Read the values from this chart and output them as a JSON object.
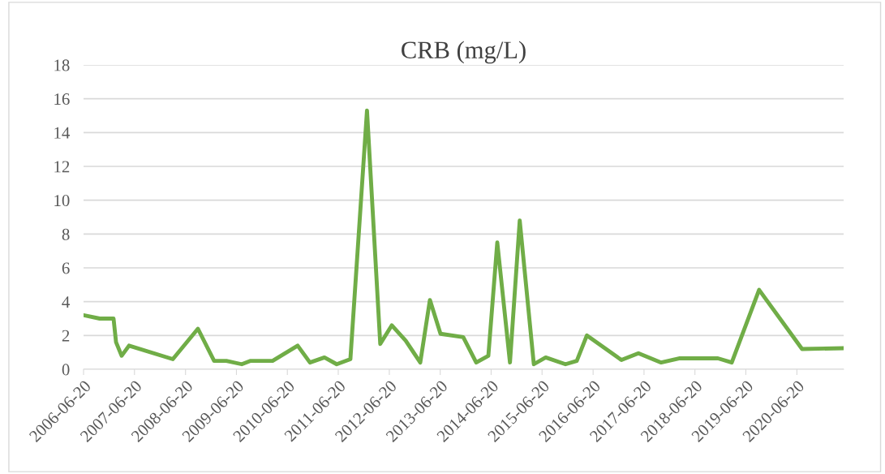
{
  "chart_data": {
    "type": "line",
    "title": "CRB (mg/L)",
    "x": [
      "2006-06-20",
      "2006-10-14",
      "2007-01-21",
      "2007-02-08",
      "2007-03-20",
      "2007-05-12",
      "2008-03-21",
      "2008-09-17",
      "2009-01-11",
      "2009-04-09",
      "2009-07-28",
      "2009-09-30",
      "2010-03-06",
      "2010-09-02",
      "2010-11-29",
      "2011-03-13",
      "2011-06-09",
      "2011-09-15",
      "2012-01-12",
      "2012-04-16",
      "2012-07-08",
      "2012-10-15",
      "2013-01-28",
      "2013-04-07",
      "2013-06-22",
      "2013-12-02",
      "2014-03-05",
      "2014-05-31",
      "2014-08-03",
      "2014-11-02",
      "2015-01-11",
      "2015-04-22",
      "2015-07-16",
      "2015-12-05",
      "2016-02-24",
      "2016-05-06",
      "2017-01-09",
      "2017-05-11",
      "2017-10-21",
      "2018-03-04",
      "2018-12-02",
      "2019-03-11",
      "2019-09-23",
      "2020-07-27",
      "2021-05-21"
    ],
    "series": [
      {
        "color": "#70ad47",
        "values": [
          3.2,
          3.0,
          3.0,
          1.6,
          0.8,
          1.4,
          0.6,
          2.4,
          0.5,
          0.5,
          0.3,
          0.5,
          0.5,
          1.4,
          0.4,
          0.7,
          0.3,
          0.6,
          15.3,
          1.5,
          2.6,
          1.7,
          0.4,
          4.1,
          2.1,
          1.9,
          0.4,
          0.8,
          7.5,
          0.4,
          8.8,
          0.3,
          0.7,
          0.3,
          0.5,
          2.0,
          0.55,
          0.95,
          0.4,
          0.65,
          0.65,
          0.4,
          4.7,
          1.2,
          1.25
        ]
      }
    ],
    "xlim": [
      "2006-06-20",
      "2021-05-21"
    ],
    "xticks": [
      "2006-06-20",
      "2007-06-20",
      "2008-06-20",
      "2009-06-20",
      "2010-06-20",
      "2011-06-20",
      "2012-06-20",
      "2013-06-20",
      "2014-06-20",
      "2015-06-20",
      "2016-06-20",
      "2017-06-20",
      "2018-06-20",
      "2019-06-20",
      "2020-06-20"
    ],
    "ylim": [
      0,
      18
    ],
    "yticks": [
      0,
      2,
      4,
      6,
      8,
      10,
      12,
      14,
      16,
      18
    ],
    "grid": "y",
    "legend": false,
    "marker": "none",
    "line_style": "solid"
  }
}
